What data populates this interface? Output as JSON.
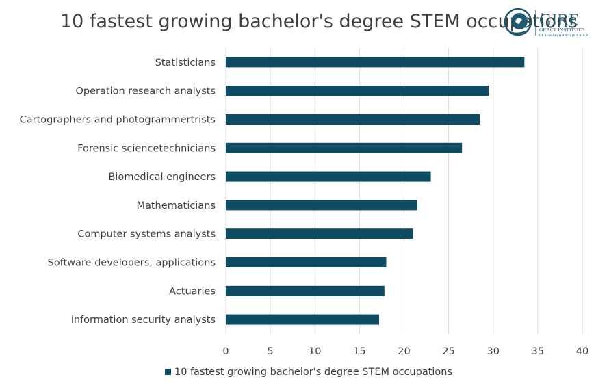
{
  "chart_data": {
    "type": "bar",
    "orientation": "horizontal",
    "title": "10 fastest growing bachelor's degree STEM occupations",
    "categories": [
      "Statisticians",
      "Operation research analysts",
      "Cartographers and photogrammertrists",
      "Forensic sciencetechnicians",
      "Biomedical engineers",
      "Mathematicians",
      "Computer systems analysts",
      "Software developers, applications",
      "Actuaries",
      "information security analysts"
    ],
    "series": [
      {
        "name": "10 fastest growing bachelor's degree STEM occupations",
        "values": [
          33.5,
          29.5,
          28.5,
          26.5,
          23,
          21.5,
          21,
          18,
          17.8,
          17.2
        ]
      }
    ],
    "xlim": [
      0,
      40
    ],
    "xticks": [
      "0",
      "5",
      "10",
      "15",
      "20",
      "25",
      "30",
      "35",
      "40"
    ],
    "grid": "vertical",
    "legend": "bottom",
    "bar_color": "#0f4c63"
  },
  "logo": {
    "name": "GIRE",
    "subtitle_line1": "GRACE INSTITUTE",
    "subtitle_line2": "OF RESEARCH AND EDUCATION",
    "color": "#1f5b70"
  }
}
